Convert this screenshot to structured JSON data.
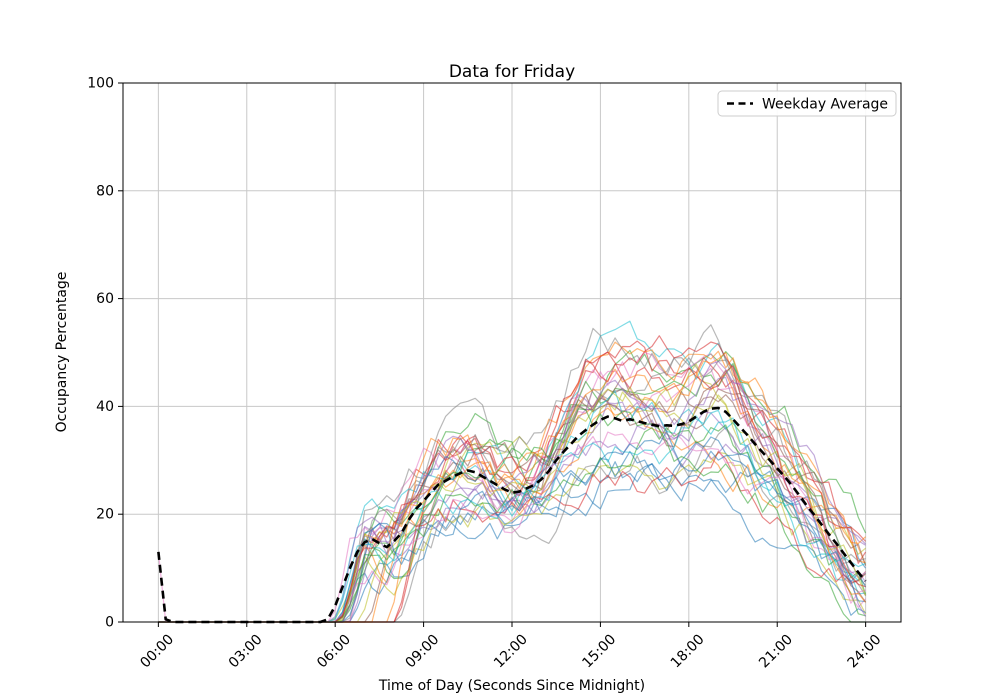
{
  "figure": {
    "title": "Data for Friday",
    "background_color": "#ffffff"
  },
  "chart_data": {
    "type": "line",
    "title": "Data for Friday",
    "xlabel": "Time of Day (Seconds Since Midnight)",
    "ylabel": "Occupancy Percentage",
    "xlim_hours": [
      0,
      24
    ],
    "ylim": [
      0,
      100
    ],
    "grid": true,
    "grid_color": "#c8c8c8",
    "spine_color": "#000000",
    "x_tick_hours": [
      0,
      3,
      6,
      9,
      12,
      15,
      18,
      21,
      24
    ],
    "x_tick_labels": [
      "00:00",
      "03:00",
      "06:00",
      "09:00",
      "12:00",
      "15:00",
      "18:00",
      "21:00",
      "24:00"
    ],
    "y_ticks": [
      "0",
      "20",
      "40",
      "60",
      "80",
      "100"
    ],
    "y_tick_values": [
      0,
      20,
      40,
      60,
      80,
      100
    ],
    "legend": {
      "position": "upper right",
      "entries": [
        {
          "label": "Weekday Average",
          "color": "#000000",
          "dashed": true
        }
      ]
    },
    "series": [
      {
        "name": "Weekday Average",
        "color": "#000000",
        "style": "dashed",
        "line_width": 2.6,
        "x_hours": [
          0,
          0.25,
          0.5,
          1,
          1.5,
          2,
          2.5,
          3,
          3.5,
          4,
          4.5,
          5,
          5.5,
          5.75,
          6,
          6.25,
          6.5,
          6.75,
          7,
          7.25,
          7.5,
          7.75,
          8,
          8.25,
          8.5,
          8.75,
          9,
          9.25,
          9.5,
          9.75,
          10,
          10.25,
          10.5,
          10.75,
          11,
          11.25,
          11.5,
          11.75,
          12,
          12.25,
          12.5,
          12.75,
          13,
          13.25,
          13.5,
          13.75,
          14,
          14.25,
          14.5,
          14.75,
          15,
          15.25,
          15.5,
          15.75,
          16,
          16.25,
          16.5,
          16.75,
          17,
          17.25,
          17.5,
          17.75,
          18,
          18.25,
          18.5,
          18.75,
          19,
          19.25,
          19.5,
          19.75,
          20,
          20.25,
          20.5,
          20.75,
          21,
          21.25,
          21.5,
          21.75,
          22,
          22.25,
          22.5,
          22.75,
          23,
          23.25,
          23.5,
          23.75,
          24
        ],
        "values": [
          13,
          0.5,
          0,
          0,
          0,
          0,
          0,
          0,
          0,
          0,
          0,
          0,
          0,
          0.5,
          3,
          6.5,
          10,
          13,
          14.8,
          15.4,
          14.6,
          13.9,
          15,
          16.5,
          19,
          21,
          22.5,
          24,
          25.5,
          26.2,
          27,
          27.6,
          28.1,
          27.8,
          27,
          26.2,
          25.4,
          24.6,
          24,
          24.2,
          24.8,
          25.4,
          26.5,
          28,
          30,
          31.6,
          33,
          34.5,
          35.6,
          36.6,
          37.5,
          38.1,
          37.8,
          37.3,
          37.6,
          37.3,
          36.9,
          36.6,
          36.3,
          36.5,
          36.4,
          36.7,
          37.2,
          38.1,
          39,
          39.6,
          39.7,
          39,
          37.6,
          36.1,
          34.6,
          33,
          31.5,
          30,
          28.5,
          27,
          25.3,
          23.5,
          21.6,
          19.9,
          18.1,
          16.3,
          14.6,
          12.8,
          11,
          9.2,
          7.6
        ]
      }
    ],
    "individual_days": {
      "description": "thin semi-transparent traces of single Fridays following the average shape with noise",
      "count": 35,
      "line_width": 1.2,
      "alpha": 0.55,
      "colors": [
        "#1f77b4",
        "#ff7f0e",
        "#2ca02c",
        "#d62728",
        "#9467bd",
        "#8c564b",
        "#e377c2",
        "#7f7f7f",
        "#bcbd22",
        "#17becf"
      ],
      "start_hour_range": [
        5.7,
        8.5
      ],
      "peak_value_range": [
        25,
        62
      ],
      "end_value_range": [
        1,
        14
      ],
      "midnight_spike": {
        "value": 13,
        "color": "#e377c2"
      },
      "seed": 7
    }
  }
}
